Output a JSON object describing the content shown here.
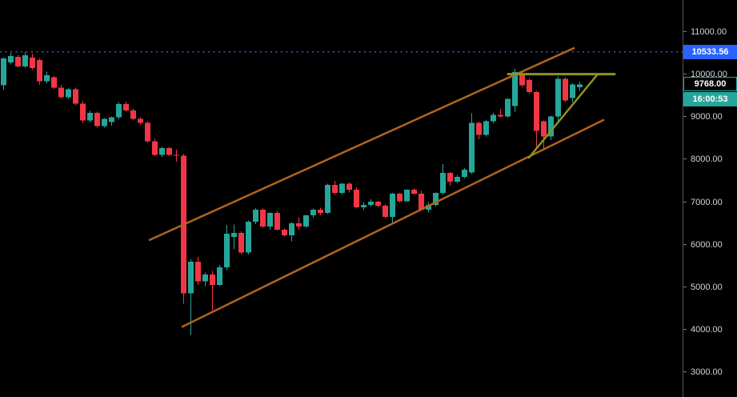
{
  "chart_data": {
    "type": "candlestick",
    "title": "",
    "xlabel": "",
    "ylabel": "",
    "ylim": [
      3000,
      11000
    ],
    "grid": "off",
    "background_color": "#000000",
    "up_color": "#26a69a",
    "down_color": "#f23645",
    "axis": {
      "side": "right",
      "text_color": "#d1d4dc",
      "line_color": "#50535e",
      "tick_labels": [
        "11000.00",
        "10000.00",
        "9000.00",
        "8000.00",
        "7000.00",
        "6000.00",
        "5000.00",
        "4000.00",
        "3000.00"
      ],
      "tick_prices": [
        11000,
        10000,
        9000,
        8000,
        7000,
        6000,
        5000,
        4000,
        3000
      ]
    },
    "price_line": {
      "name": "all-time-high-dotted-line",
      "price": 10533.56,
      "style": "dotted",
      "color": "#2e62c9"
    },
    "labels": {
      "ath": {
        "text": "10533.56",
        "price": 10533.56,
        "bg": "#2962ff",
        "fg": "#ffffff"
      },
      "last": {
        "text": "9768.00",
        "price": 9768.0,
        "bg": "#000000",
        "border": "#26a69a",
        "fg": "#ffffff"
      },
      "countdown": {
        "text": "16:00:53",
        "bg": "#26a69a",
        "fg": "#ffffff"
      }
    },
    "trendlines": [
      {
        "name": "channel-upper-line",
        "color": "#b2641f",
        "width": 2.5,
        "points": [
          {
            "x": 187,
            "price": 6110
          },
          {
            "x": 717,
            "price": 10620
          }
        ]
      },
      {
        "name": "channel-lower-line",
        "color": "#b2641f",
        "width": 2.5,
        "points": [
          {
            "x": 228,
            "price": 4070
          },
          {
            "x": 754,
            "price": 8930
          }
        ]
      },
      {
        "name": "triangle-resistance-line",
        "color": "#8f931d",
        "width": 3,
        "points": [
          {
            "x": 635,
            "price": 10010
          },
          {
            "x": 768,
            "price": 10010
          }
        ]
      },
      {
        "name": "triangle-support-line",
        "color": "#8f931d",
        "width": 2.5,
        "points": [
          {
            "x": 661,
            "price": 8045
          },
          {
            "x": 747,
            "price": 10010
          }
        ]
      }
    ],
    "candles": [
      [
        9750,
        10400,
        9640,
        10377
      ],
      [
        10283,
        10510,
        10240,
        10434
      ],
      [
        10415,
        10450,
        10160,
        10190
      ],
      [
        10190,
        10533.56,
        10160,
        10453
      ],
      [
        10396,
        10490,
        10120,
        10151
      ],
      [
        10340,
        10380,
        9760,
        9846
      ],
      [
        9846,
        10070,
        9800,
        9980
      ],
      [
        9941,
        9970,
        9660,
        9695
      ],
      [
        9695,
        9760,
        9440,
        9468
      ],
      [
        9468,
        9680,
        9430,
        9657
      ],
      [
        9657,
        9690,
        9280,
        9320
      ],
      [
        9320,
        9380,
        8850,
        8920
      ],
      [
        8920,
        9150,
        8870,
        9100
      ],
      [
        9100,
        9130,
        8750,
        8790
      ],
      [
        8790,
        8980,
        8750,
        8957
      ],
      [
        8880,
        9010,
        8800,
        8995
      ],
      [
        8995,
        9350,
        8950,
        9310
      ],
      [
        9310,
        9360,
        9130,
        9160
      ],
      [
        9160,
        9200,
        8930,
        8957
      ],
      [
        8957,
        9000,
        8830,
        8863
      ],
      [
        8863,
        8900,
        8400,
        8428
      ],
      [
        8428,
        8490,
        8080,
        8106
      ],
      [
        8106,
        8300,
        8060,
        8270
      ],
      [
        8270,
        8300,
        8080,
        8106
      ],
      [
        8106,
        8230,
        7950,
        8090
      ],
      [
        8090,
        8140,
        4608,
        4850
      ],
      [
        4850,
        5650,
        3880,
        5600
      ],
      [
        5600,
        5720,
        5050,
        5140
      ],
      [
        5140,
        5340,
        5020,
        5300
      ],
      [
        5300,
        5380,
        4450,
        5050
      ],
      [
        5050,
        5520,
        5030,
        5470
      ],
      [
        5470,
        6460,
        5400,
        6253
      ],
      [
        6180,
        6470,
        5890,
        6272
      ],
      [
        6272,
        6310,
        5780,
        5810
      ],
      [
        5810,
        6570,
        5770,
        6537
      ],
      [
        6537,
        6860,
        6480,
        6820
      ],
      [
        6820,
        6850,
        6400,
        6430
      ],
      [
        6430,
        6760,
        6350,
        6745
      ],
      [
        6745,
        6790,
        6330,
        6348
      ],
      [
        6348,
        6380,
        6190,
        6215
      ],
      [
        6215,
        6530,
        6080,
        6500
      ],
      [
        6500,
        6640,
        6350,
        6430
      ],
      [
        6430,
        6700,
        6400,
        6690
      ],
      [
        6690,
        6850,
        6630,
        6820
      ],
      [
        6820,
        6870,
        6690,
        6745
      ],
      [
        6745,
        7430,
        6720,
        7405
      ],
      [
        7405,
        7500,
        7170,
        7216
      ],
      [
        7216,
        7450,
        7180,
        7430
      ],
      [
        7430,
        7460,
        7230,
        7292
      ],
      [
        7292,
        7350,
        6850,
        6877
      ],
      [
        6877,
        7000,
        6810,
        6934
      ],
      [
        6934,
        7070,
        6890,
        7009
      ],
      [
        7009,
        7030,
        6880,
        6915
      ],
      [
        6915,
        6950,
        6620,
        6650
      ],
      [
        6650,
        7220,
        6500,
        7198
      ],
      [
        7198,
        7220,
        6990,
        7020
      ],
      [
        7020,
        7300,
        7010,
        7292
      ],
      [
        7292,
        7330,
        7180,
        7198
      ],
      [
        7198,
        7260,
        6800,
        6820
      ],
      [
        6820,
        7000,
        6760,
        6934
      ],
      [
        6934,
        7230,
        6900,
        7217
      ],
      [
        7217,
        7890,
        7170,
        7690
      ],
      [
        7690,
        7710,
        7390,
        7482
      ],
      [
        7482,
        7640,
        7450,
        7595
      ],
      [
        7595,
        7800,
        7560,
        7765
      ],
      [
        7700,
        9090,
        7660,
        8863
      ],
      [
        8863,
        8890,
        8480,
        8580
      ],
      [
        8580,
        8930,
        8540,
        8901
      ],
      [
        8901,
        9100,
        8850,
        9052
      ],
      [
        9052,
        9190,
        8990,
        9014
      ],
      [
        9014,
        9440,
        8990,
        9430
      ],
      [
        9260,
        10130,
        9120,
        10062
      ],
      [
        9998,
        10080,
        9700,
        9752
      ],
      [
        9871,
        9910,
        9550,
        9587
      ],
      [
        9587,
        9620,
        8240,
        8674
      ],
      [
        8901,
        8920,
        8257,
        8548
      ],
      [
        8548,
        9030,
        8460,
        9014
      ],
      [
        9014,
        9960,
        8910,
        9903
      ],
      [
        9903,
        9940,
        9350,
        9392
      ],
      [
        9450,
        9800,
        9350,
        9771
      ],
      [
        9700,
        9830,
        9620,
        9768
      ]
    ]
  }
}
